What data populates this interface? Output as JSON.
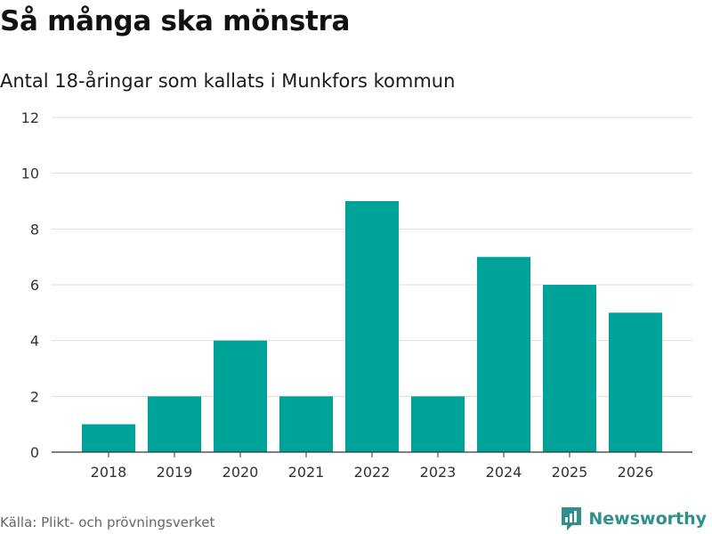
{
  "header": {
    "title": "Så många ska mönstra",
    "subtitle": "Antal 18-åringar som kallats i Munkfors kommun"
  },
  "footer": {
    "source": "Källa: Plikt- och prövningsverket",
    "brand": "Newsworthy",
    "brand_icon": "newsworthy-logo-icon"
  },
  "colors": {
    "bar": "#00a39a",
    "grid": "#dddddd",
    "axis": "#333333",
    "brand": "#2f8f8a"
  },
  "chart_data": {
    "type": "bar",
    "title": "Så många ska mönstra",
    "subtitle": "Antal 18-åringar som kallats i Munkfors kommun",
    "xlabel": "",
    "ylabel": "",
    "categories": [
      "2018",
      "2019",
      "2020",
      "2021",
      "2022",
      "2023",
      "2024",
      "2025",
      "2026"
    ],
    "values": [
      1,
      2,
      4,
      2,
      9,
      2,
      7,
      6,
      5
    ],
    "ylim": [
      0,
      12
    ],
    "yticks": [
      0,
      2,
      4,
      6,
      8,
      10,
      12
    ],
    "grid": true,
    "legend": "none"
  }
}
